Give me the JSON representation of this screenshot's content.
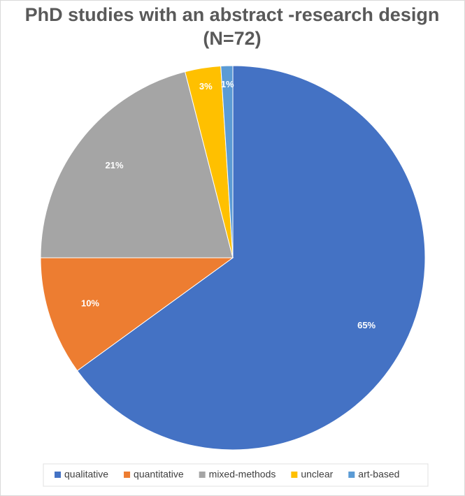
{
  "chart_data": {
    "type": "pie",
    "title": "PhD studies with an abstract -research design",
    "subtitle": "(N=72)",
    "categories": [
      "qualitative",
      "quantitative",
      "mixed-methods",
      "unclear",
      "art-based"
    ],
    "values": [
      65,
      10,
      21,
      3,
      1
    ],
    "value_labels": [
      "65%",
      "10%",
      "21%",
      "3%",
      "1%"
    ],
    "colors": [
      "#4472c4",
      "#ed7d31",
      "#a5a5a5",
      "#ffc000",
      "#5b9bd5"
    ],
    "legend": "bottom"
  }
}
